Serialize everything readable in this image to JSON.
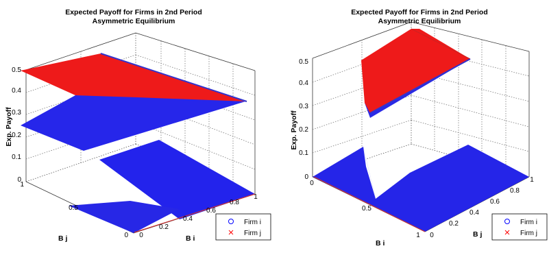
{
  "chart_data": [
    {
      "type": "scatter3d",
      "title": [
        "Expected Payoff for Firms in 2nd Period",
        "Asymmetric Equilibrium"
      ],
      "xlabel": "B i",
      "ylabel": "B j",
      "zlabel": "Exp. Payoff",
      "xlim": [
        0,
        1
      ],
      "ylim": [
        0,
        1
      ],
      "zlim": [
        0,
        0.5
      ],
      "x_ticks": [
        "0",
        "0.2",
        "0.4",
        "0.6",
        "0.8",
        "1"
      ],
      "y_ticks": [
        "0",
        "0.5",
        "1"
      ],
      "z_ticks": [
        "0",
        "0.1",
        "0.2",
        "0.3",
        "0.4",
        "0.5"
      ],
      "grid": true,
      "legend_position": "bottom-right",
      "series": [
        {
          "name": "Firm i",
          "marker": "o",
          "color": "#0000ff",
          "surfaces": [
            {
              "region": "Bj > 0.5, Bi > 0.5",
              "corners": [
                [
                  0.5,
                  0.5,
                  0.5
                ],
                [
                  1,
                  0.5,
                  0.35
                ],
                [
                  1,
                  1,
                  0.35
                ],
                [
                  0.5,
                  1,
                  0.5
                ]
              ]
            },
            {
              "region": "Bj > 0.5, Bi < 0.5",
              "corners": [
                [
                  0,
                  0.5,
                  0.16
                ],
                [
                  0.5,
                  0.5,
                  0.5
                ],
                [
                  0.5,
                  1,
                  0.5
                ],
                [
                  0,
                  1,
                  0.25
                ]
              ]
            },
            {
              "region": "Bj > 0.5, Bi > 0.5 (low)",
              "corners": [
                [
                  0.5,
                  0.5,
                  0
                ],
                [
                  1,
                  0.5,
                  0
                ],
                [
                  1,
                  1,
                  0.09
                ],
                [
                  0.5,
                  1,
                  0.09
                ]
              ]
            },
            {
              "region": "Bj < 0.5",
              "corners": [
                [
                  0,
                  0,
                  0
                ],
                [
                  1,
                  0,
                  0
                ],
                [
                  1,
                  0.5,
                  0
                ],
                [
                  0,
                  0.5,
                  0
                ]
              ]
            }
          ]
        },
        {
          "name": "Firm j",
          "marker": "x",
          "color": "#ff0000",
          "surfaces": [
            {
              "region": "Bj > 0.5",
              "corners": [
                [
                  0,
                  0.5,
                  0.5
                ],
                [
                  0.5,
                  0.5,
                  0.5
                ],
                [
                  1,
                  1,
                  0.35
                ],
                [
                  0,
                  1,
                  0.5
                ]
              ]
            },
            {
              "region": "Bj < 0.5",
              "corners": [
                [
                  0,
                  0,
                  0
                ],
                [
                  1,
                  0,
                  0
                ],
                [
                  1,
                  0.5,
                  0
                ],
                [
                  0,
                  0.5,
                  0
                ]
              ]
            }
          ]
        }
      ]
    },
    {
      "type": "scatter3d",
      "title": [
        "Expected Payoff for Firms in 2nd Period",
        "Asymmetric Equilibrium"
      ],
      "xlabel": "B i",
      "ylabel": "B j",
      "zlabel": "Exp. Payoff",
      "xlim": [
        0,
        1
      ],
      "ylim": [
        0,
        1
      ],
      "zlim": [
        0,
        0.5
      ],
      "x_ticks": [
        "0",
        "0.5",
        "1"
      ],
      "y_ticks": [
        "0",
        "0.2",
        "0.4",
        "0.6",
        "0.8",
        "1"
      ],
      "z_ticks": [
        "0",
        "0.1",
        "0.2",
        "0.3",
        "0.4",
        "0.5"
      ],
      "grid": true,
      "legend_position": "bottom-right",
      "series": [
        {
          "name": "Firm i",
          "marker": "o",
          "color": "#0000ff",
          "surfaces": [
            {
              "region": "Bi > 0.5, Bj > 0.5",
              "corners": [
                [
                  0.5,
                  0.5,
                  0.33
                ],
                [
                  1,
                  0.5,
                  0.33
                ],
                [
                  1,
                  1,
                  0.5
                ],
                [
                  0.5,
                  1,
                  0.5
                ]
              ]
            },
            {
              "region": "Bi > 0.5, Bj < 0.5",
              "corners": [
                [
                  0.5,
                  0,
                  0
                ],
                [
                  1,
                  0,
                  0
                ],
                [
                  1,
                  0.5,
                  0
                ],
                [
                  0.5,
                  0.5,
                  0
                ]
              ]
            },
            {
              "region": "Bi < 0.5",
              "corners": [
                [
                  0,
                  0,
                  0
                ],
                [
                  0.5,
                  0,
                  0
                ],
                [
                  0.5,
                  1,
                  0
                ],
                [
                  0,
                  1,
                  0
                ]
              ]
            }
          ]
        },
        {
          "name": "Firm j",
          "marker": "x",
          "color": "#ff0000",
          "surfaces": [
            {
              "region": "Bi > 0.5, Bj > 0.5",
              "corners": [
                [
                  0.5,
                  0.5,
                  0.5
                ],
                [
                  1,
                  0.5,
                  0.5
                ],
                [
                  1,
                  1,
                  0.5
                ],
                [
                  0.5,
                  1,
                  0.5
                ]
              ]
            },
            {
              "region": "Bj < 0.5",
              "corners": [
                [
                  0,
                  0,
                  0
                ],
                [
                  1,
                  0,
                  0
                ],
                [
                  1,
                  0.5,
                  0
                ],
                [
                  0,
                  0.5,
                  0
                ]
              ]
            }
          ]
        }
      ]
    }
  ]
}
